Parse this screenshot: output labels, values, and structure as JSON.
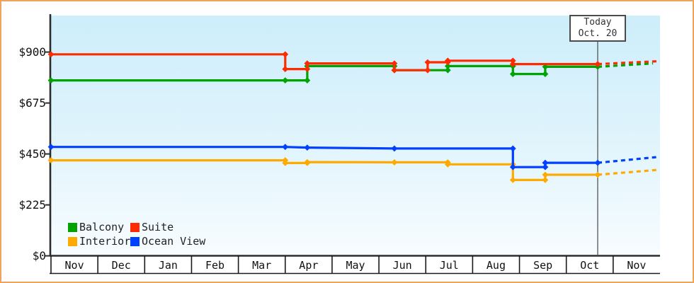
{
  "chart_data": {
    "type": "line",
    "subtype": "step-with-markers",
    "title": "",
    "xlabel": "",
    "ylabel": "",
    "x_axis": {
      "months": [
        "Nov",
        "Dec",
        "Jan",
        "Feb",
        "Mar",
        "Apr",
        "May",
        "Jun",
        "Jul",
        "Aug",
        "Sep",
        "Oct",
        "Nov"
      ],
      "unit": "months since first Nov; fractional = day within month",
      "range": [
        0,
        13
      ]
    },
    "y_axis": {
      "ticks": [
        {
          "label": "$900",
          "value": 900
        },
        {
          "label": "$675",
          "value": 675
        },
        {
          "label": "$450",
          "value": 450
        },
        {
          "label": "$225",
          "value": 225
        },
        {
          "label": "$0",
          "value": 0
        }
      ],
      "range": [
        0,
        1060
      ],
      "grid": false
    },
    "series": [
      {
        "name": "Balcony",
        "color": "#00a300",
        "points": [
          [
            0,
            775
          ],
          [
            5.0,
            775
          ],
          [
            5.47,
            775
          ],
          [
            5.47,
            838
          ],
          [
            7.33,
            838
          ],
          [
            7.33,
            820
          ],
          [
            8.47,
            820
          ],
          [
            8.47,
            838
          ],
          [
            9.86,
            838
          ],
          [
            9.86,
            803
          ],
          [
            10.55,
            803
          ],
          [
            10.55,
            835
          ],
          [
            11.67,
            835
          ]
        ],
        "forecast": [
          [
            11.67,
            835
          ],
          [
            12.85,
            850
          ]
        ]
      },
      {
        "name": "Interior",
        "color": "#ffaa00",
        "points": [
          [
            0,
            422
          ],
          [
            5.0,
            422
          ],
          [
            5.0,
            410
          ],
          [
            5.47,
            410
          ],
          [
            5.47,
            414
          ],
          [
            7.33,
            413
          ],
          [
            8.47,
            413
          ],
          [
            8.47,
            404
          ],
          [
            9.86,
            404
          ],
          [
            9.86,
            335
          ],
          [
            10.55,
            335
          ],
          [
            10.55,
            358
          ],
          [
            11.67,
            358
          ]
        ],
        "forecast": [
          [
            11.67,
            358
          ],
          [
            12.97,
            380
          ]
        ]
      },
      {
        "name": "Ocean View",
        "color": "#0040ff",
        "points": [
          [
            0,
            481
          ],
          [
            5.0,
            481
          ],
          [
            5.47,
            478
          ],
          [
            7.33,
            474
          ],
          [
            9.86,
            474
          ],
          [
            9.86,
            392
          ],
          [
            10.55,
            392
          ],
          [
            10.55,
            411
          ],
          [
            11.67,
            411
          ]
        ],
        "forecast": [
          [
            11.67,
            411
          ],
          [
            12.97,
            437
          ]
        ]
      },
      {
        "name": "Suite",
        "color": "#ff2b00",
        "points": [
          [
            0,
            890
          ],
          [
            5.0,
            890
          ],
          [
            5.0,
            825
          ],
          [
            5.47,
            825
          ],
          [
            5.47,
            850
          ],
          [
            7.33,
            850
          ],
          [
            7.33,
            820
          ],
          [
            8.04,
            820
          ],
          [
            8.04,
            855
          ],
          [
            8.47,
            855
          ],
          [
            8.47,
            862
          ],
          [
            9.86,
            862
          ],
          [
            9.86,
            847
          ],
          [
            11.67,
            847
          ]
        ],
        "forecast": [
          [
            11.67,
            847
          ],
          [
            13.0,
            860
          ]
        ]
      }
    ],
    "legend": {
      "position": "bottom-left-inside-plot",
      "items": [
        {
          "label": "Balcony",
          "row": 0,
          "col": 0
        },
        {
          "label": "Suite",
          "row": 0,
          "col": 1
        },
        {
          "label": "Interior",
          "row": 1,
          "col": 0
        },
        {
          "label": "Ocean View",
          "row": 1,
          "col": 1
        }
      ]
    },
    "today": {
      "line1": "Today",
      "line2": "Oct. 20",
      "month_index": 11.67
    }
  }
}
